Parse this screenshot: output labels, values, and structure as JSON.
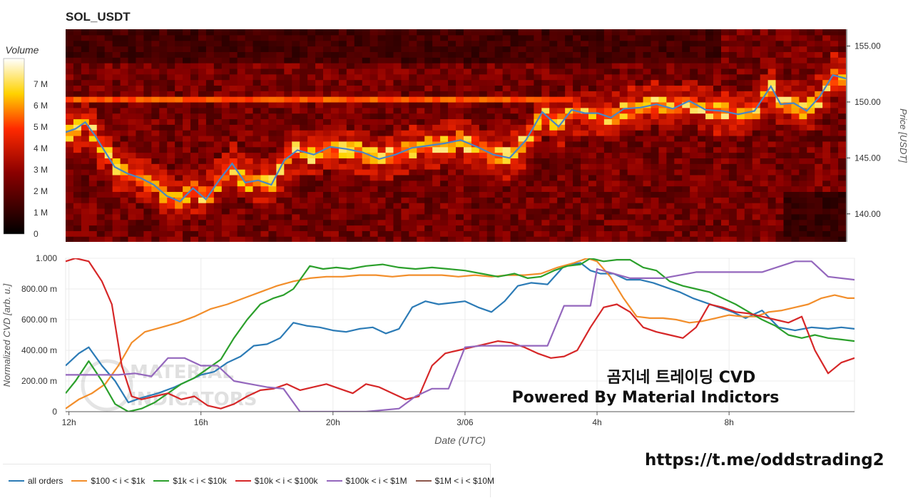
{
  "header": {
    "title": "SOL_USDT"
  },
  "watermark": {
    "line1": "곰지네 트레이딩 CVD",
    "line2": "Powered By Material Indictors",
    "link": "https://t.me/oddstrading2",
    "logo_text": [
      "MATERIAL",
      "INDICATORS"
    ]
  },
  "colors": {
    "all_orders": "#2c7bb6",
    "s100_1k": "#f28e2b",
    "s1k_10k": "#2ca02c",
    "s10k_100k": "#d62728",
    "s100k_1m": "#9467bd",
    "s1m_10m": "#8c564b",
    "price_line": "#4a86c5"
  },
  "chart_data": [
    {
      "type": "heatmap",
      "title": "SOL_USDT",
      "ylabel": "Price [USDT]",
      "ylim": [
        137.5,
        156.5
      ],
      "yticks": [
        140.0,
        145.0,
        150.0,
        155.0
      ],
      "ytick_labels": [
        "140.00",
        "145.00",
        "150.00",
        "155.00"
      ],
      "colorbar": {
        "label": "Volume",
        "ticks": [
          0,
          1,
          2,
          3,
          4,
          5,
          6,
          7
        ],
        "tick_labels": [
          "0",
          "1 M",
          "2 M",
          "3 M",
          "4 M",
          "5 M",
          "6 M",
          "7 M"
        ],
        "range": [
          0,
          8.2
        ]
      },
      "x_range_hours": [
        11.9,
        35.8
      ],
      "price_series": {
        "name": "price",
        "x": [
          11.9,
          12.2,
          12.5,
          12.8,
          13.1,
          13.4,
          13.8,
          14.2,
          14.6,
          15.0,
          15.4,
          15.8,
          16.2,
          16.6,
          17.0,
          17.4,
          17.8,
          18.2,
          18.6,
          19.0,
          19.5,
          20.0,
          20.5,
          21.0,
          21.5,
          22.0,
          22.5,
          23.0,
          23.5,
          24.0,
          24.5,
          25.0,
          25.5,
          26.0,
          26.5,
          27.0,
          27.4,
          27.8,
          28.2,
          28.6,
          29.0,
          29.5,
          30.0,
          30.5,
          31.0,
          31.5,
          32.0,
          32.5,
          33.0,
          33.5,
          33.8,
          34.2,
          34.6,
          35.0,
          35.4,
          35.8
        ],
        "y": [
          147.3,
          147.6,
          148.2,
          147.0,
          145.6,
          144.2,
          143.6,
          143.2,
          142.6,
          141.6,
          141.1,
          142.3,
          141.3,
          143.0,
          144.5,
          142.8,
          143.0,
          142.6,
          144.8,
          145.7,
          145.3,
          146.0,
          145.8,
          145.5,
          144.9,
          145.3,
          145.9,
          146.1,
          146.3,
          146.6,
          146.0,
          145.3,
          145.0,
          146.6,
          149.1,
          147.8,
          149.3,
          149.0,
          149.0,
          148.6,
          149.4,
          149.5,
          149.8,
          149.4,
          150.1,
          149.3,
          149.2,
          148.9,
          149.2,
          151.4,
          149.8,
          149.9,
          149.2,
          150.5,
          152.4,
          152.1
        ]
      }
    },
    {
      "type": "line",
      "xlabel": "Date (UTC)",
      "ylabel": "Normalized CVD [arb. u.]",
      "ylim": [
        0,
        1
      ],
      "yticks": [
        0,
        0.2,
        0.4,
        0.6,
        0.8,
        1.0
      ],
      "ytick_labels": [
        "0",
        "200.00 m",
        "400.00 m",
        "600.00 m",
        "800.00 m",
        "1.000"
      ],
      "x_range_hours": [
        11.9,
        35.8
      ],
      "xticks": [
        12,
        16,
        20,
        24,
        28,
        32
      ],
      "xtick_labels": [
        "12h",
        "16h",
        "20h",
        "3/06",
        "4h",
        "8h"
      ],
      "legend_placement": "bottom",
      "grid": true,
      "series": [
        {
          "name": "all orders",
          "key": "all_orders",
          "x": [
            11.9,
            12.3,
            12.6,
            13.0,
            13.4,
            13.8,
            14.2,
            14.7,
            15.2,
            15.6,
            16.0,
            16.4,
            16.8,
            17.2,
            17.6,
            18.0,
            18.4,
            18.8,
            19.2,
            19.6,
            20.0,
            20.4,
            20.8,
            21.2,
            21.6,
            22.0,
            22.4,
            22.8,
            23.2,
            23.6,
            24.0,
            24.4,
            24.8,
            25.2,
            25.6,
            26.0,
            26.5,
            27.0,
            27.5,
            27.8,
            28.1,
            28.5,
            28.9,
            29.3,
            29.7,
            30.1,
            30.5,
            30.9,
            31.3,
            31.7,
            32.1,
            32.5,
            33.0,
            33.5,
            34.0,
            34.5,
            35.0,
            35.4,
            35.8
          ],
          "y": [
            0.3,
            0.38,
            0.42,
            0.3,
            0.2,
            0.06,
            0.09,
            0.12,
            0.16,
            0.2,
            0.24,
            0.26,
            0.32,
            0.36,
            0.43,
            0.44,
            0.48,
            0.58,
            0.56,
            0.55,
            0.53,
            0.52,
            0.54,
            0.55,
            0.51,
            0.54,
            0.68,
            0.72,
            0.7,
            0.71,
            0.72,
            0.68,
            0.65,
            0.72,
            0.82,
            0.84,
            0.83,
            0.95,
            0.97,
            0.92,
            0.9,
            0.9,
            0.86,
            0.86,
            0.84,
            0.81,
            0.78,
            0.74,
            0.71,
            0.68,
            0.65,
            0.61,
            0.66,
            0.55,
            0.53,
            0.55,
            0.54,
            0.55,
            0.54
          ]
        },
        {
          "name": "$100 < i < $1k",
          "key": "s100_1k",
          "x": [
            11.9,
            12.3,
            12.7,
            13.1,
            13.5,
            13.9,
            14.3,
            14.8,
            15.3,
            15.8,
            16.3,
            16.8,
            17.3,
            17.8,
            18.3,
            18.8,
            19.3,
            19.8,
            20.3,
            20.8,
            21.3,
            21.8,
            22.3,
            22.8,
            23.3,
            23.8,
            24.3,
            24.8,
            25.3,
            25.8,
            26.3,
            26.8,
            27.3,
            27.7,
            28.0,
            28.4,
            28.8,
            29.2,
            29.6,
            30.0,
            30.4,
            30.8,
            31.2,
            31.6,
            32.0,
            32.4,
            32.8,
            33.2,
            33.6,
            34.0,
            34.4,
            34.8,
            35.2,
            35.6,
            35.8
          ],
          "y": [
            0.02,
            0.08,
            0.12,
            0.18,
            0.3,
            0.45,
            0.52,
            0.55,
            0.58,
            0.62,
            0.67,
            0.7,
            0.74,
            0.78,
            0.82,
            0.85,
            0.87,
            0.88,
            0.88,
            0.89,
            0.89,
            0.88,
            0.89,
            0.89,
            0.89,
            0.88,
            0.89,
            0.88,
            0.89,
            0.89,
            0.9,
            0.94,
            0.97,
            1.0,
            0.98,
            0.88,
            0.74,
            0.62,
            0.61,
            0.61,
            0.6,
            0.58,
            0.59,
            0.61,
            0.63,
            0.62,
            0.62,
            0.65,
            0.66,
            0.68,
            0.7,
            0.74,
            0.76,
            0.74,
            0.74
          ]
        },
        {
          "name": "$1k < i < $10k",
          "key": "s1k_10k",
          "x": [
            11.9,
            12.2,
            12.6,
            13.0,
            13.4,
            13.8,
            14.2,
            14.6,
            15.0,
            15.4,
            15.8,
            16.2,
            16.6,
            17.0,
            17.4,
            17.8,
            18.2,
            18.5,
            18.8,
            19.0,
            19.3,
            19.7,
            20.1,
            20.5,
            21.0,
            21.5,
            22.0,
            22.5,
            23.0,
            23.5,
            24.0,
            24.5,
            25.0,
            25.5,
            25.9,
            26.3,
            26.7,
            27.1,
            27.5,
            27.8,
            28.2,
            28.6,
            29.0,
            29.4,
            29.8,
            30.2,
            30.6,
            31.0,
            31.4,
            31.8,
            32.2,
            32.6,
            33.0,
            33.4,
            33.8,
            34.2,
            34.6,
            35.0,
            35.4,
            35.8
          ],
          "y": [
            0.12,
            0.2,
            0.33,
            0.2,
            0.05,
            0.0,
            0.02,
            0.06,
            0.12,
            0.18,
            0.22,
            0.28,
            0.34,
            0.48,
            0.6,
            0.7,
            0.74,
            0.76,
            0.8,
            0.86,
            0.95,
            0.93,
            0.94,
            0.93,
            0.95,
            0.96,
            0.94,
            0.93,
            0.94,
            0.93,
            0.92,
            0.9,
            0.88,
            0.9,
            0.87,
            0.88,
            0.92,
            0.95,
            0.96,
            1.0,
            0.98,
            0.99,
            0.99,
            0.94,
            0.92,
            0.85,
            0.82,
            0.8,
            0.78,
            0.74,
            0.7,
            0.65,
            0.6,
            0.56,
            0.5,
            0.48,
            0.5,
            0.48,
            0.47,
            0.46
          ]
        },
        {
          "name": "$10k < i < $100k",
          "key": "s10k_100k",
          "x": [
            11.9,
            12.2,
            12.6,
            13.0,
            13.3,
            13.6,
            13.9,
            14.2,
            14.6,
            15.0,
            15.4,
            15.8,
            16.2,
            16.6,
            17.0,
            17.4,
            17.8,
            18.2,
            18.6,
            19.0,
            19.4,
            19.8,
            20.2,
            20.6,
            21.0,
            21.4,
            21.8,
            22.2,
            22.6,
            23.0,
            23.4,
            23.8,
            24.2,
            24.6,
            25.0,
            25.4,
            25.8,
            26.2,
            26.6,
            27.0,
            27.4,
            27.8,
            28.2,
            28.6,
            29.0,
            29.4,
            29.8,
            30.2,
            30.6,
            31.0,
            31.4,
            31.8,
            32.2,
            32.6,
            33.0,
            33.4,
            33.8,
            34.2,
            34.6,
            35.0,
            35.4,
            35.8
          ],
          "y": [
            0.98,
            1.0,
            0.98,
            0.85,
            0.7,
            0.3,
            0.1,
            0.08,
            0.1,
            0.12,
            0.08,
            0.1,
            0.04,
            0.02,
            0.05,
            0.1,
            0.14,
            0.15,
            0.18,
            0.14,
            0.16,
            0.18,
            0.15,
            0.12,
            0.18,
            0.16,
            0.12,
            0.08,
            0.1,
            0.3,
            0.38,
            0.4,
            0.42,
            0.44,
            0.46,
            0.45,
            0.42,
            0.38,
            0.35,
            0.36,
            0.4,
            0.55,
            0.68,
            0.7,
            0.65,
            0.55,
            0.52,
            0.5,
            0.48,
            0.55,
            0.7,
            0.68,
            0.65,
            0.64,
            0.62,
            0.6,
            0.58,
            0.62,
            0.4,
            0.25,
            0.32,
            0.35
          ]
        },
        {
          "name": "$100k < i < $1M",
          "key": "s100k_1m",
          "x": [
            11.9,
            12.5,
            13.0,
            13.5,
            14.0,
            14.5,
            15.0,
            15.5,
            16.0,
            16.5,
            17.0,
            17.5,
            18.0,
            18.5,
            19.0,
            19.5,
            20.0,
            21.0,
            22.0,
            22.5,
            23.0,
            23.5,
            24.0,
            24.5,
            25.0,
            26.0,
            26.5,
            27.0,
            27.5,
            27.8,
            28.0,
            29.0,
            30.0,
            31.0,
            32.0,
            33.0,
            34.0,
            34.5,
            35.0,
            35.8
          ],
          "y": [
            0.24,
            0.24,
            0.24,
            0.24,
            0.25,
            0.23,
            0.35,
            0.35,
            0.3,
            0.3,
            0.2,
            0.18,
            0.16,
            0.15,
            0.0,
            0.0,
            0.0,
            0.0,
            0.02,
            0.1,
            0.15,
            0.15,
            0.42,
            0.43,
            0.43,
            0.43,
            0.43,
            0.69,
            0.69,
            0.69,
            0.93,
            0.87,
            0.87,
            0.91,
            0.91,
            0.91,
            0.98,
            0.98,
            0.88,
            0.86
          ]
        },
        {
          "name": "$1M < i < $10M",
          "key": "s1m_10m",
          "x": [],
          "y": []
        }
      ]
    }
  ]
}
